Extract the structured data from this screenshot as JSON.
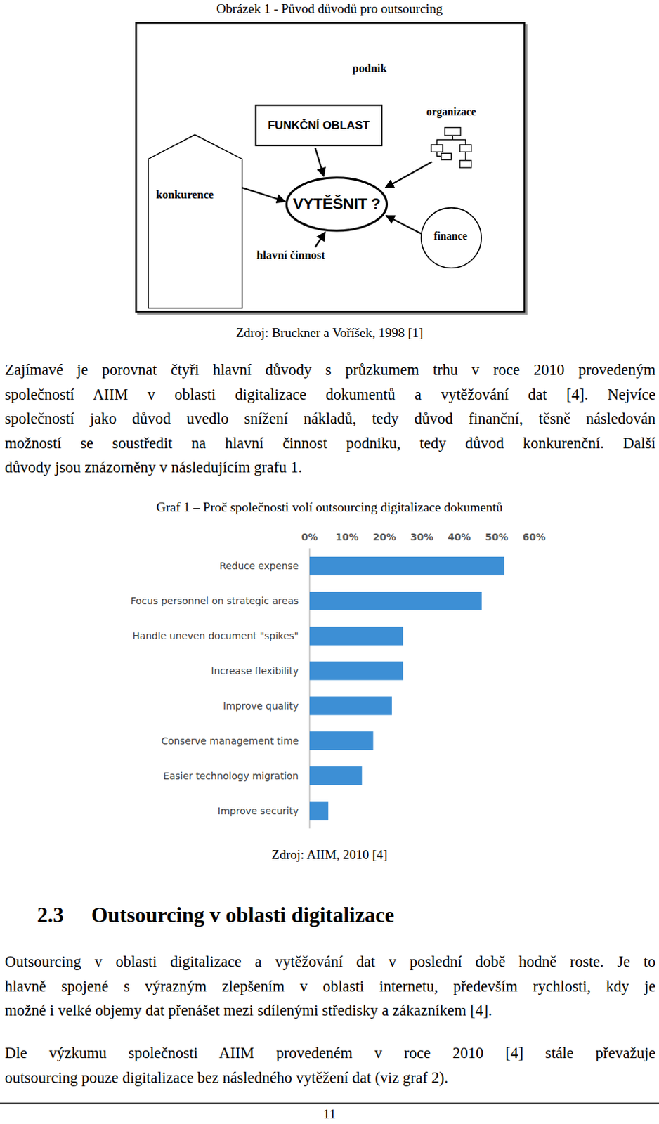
{
  "figure1": {
    "caption": "Obrázek 1 - Původ důvodů pro outsourcing",
    "nodes": [
      {
        "label": "podnik"
      },
      {
        "label": "FUNKČNÍ OBLAST"
      },
      {
        "label": "organizace"
      },
      {
        "label": "konkurence"
      },
      {
        "label": "VYTĚŠNIT ?"
      },
      {
        "label": "finance"
      },
      {
        "label": "hlavní činnost"
      }
    ],
    "source": "Zdroj: Bruckner a Voříšek, 1998 [1]"
  },
  "paragraph1": [
    "Zajímavé je porovnat čtyři hlavní důvody s průzkumem trhu v roce 2010 provedeným",
    "společností AIIM v oblasti digitalizace dokumentů a vytěžování dat [4]. Nejvíce",
    "společností jako důvod uvedlo snížení nákladů, tedy důvod finanční, těsně následován",
    "možností se soustředit na hlavní činnost podniku, tedy důvod konkurenční. Další",
    "důvody jsou znázorněny v následujícím grafu 1."
  ],
  "chart_data": {
    "type": "bar",
    "title": "Graf 1 – Proč společnosti volí outsourcing digitalizace dokumentů",
    "orientation": "horizontal",
    "categories": [
      "Reduce expense",
      "Focus personnel on strategic areas",
      "Handle uneven document \"spikes\"",
      "Increase flexibility",
      "Improve quality",
      "Conserve management time",
      "Easier technology migration",
      "Improve security"
    ],
    "values": [
      52,
      46,
      25,
      25,
      22,
      17,
      14,
      5
    ],
    "color": "#3d8fd5",
    "xlim": [
      0,
      60
    ],
    "xticks": [
      {
        "value": 0,
        "label": "0%"
      },
      {
        "value": 10,
        "label": "10%"
      },
      {
        "value": 20,
        "label": "20%"
      },
      {
        "value": 30,
        "label": "30%"
      },
      {
        "value": 40,
        "label": "40%"
      },
      {
        "value": 50,
        "label": "50%"
      },
      {
        "value": 60,
        "label": "60%"
      }
    ],
    "grid": false,
    "data_labels": false
  },
  "graph1_source": "Zdroj: AIIM, 2010 [4]",
  "section": {
    "number": "2.3",
    "title": "Outsourcing v oblasti digitalizace"
  },
  "paragraph2": [
    "Outsourcing v oblasti digitalizace a vytěžování dat v poslední době hodně roste. Je to",
    "hlavně spojené s výrazným zlepšením v oblasti internetu, především rychlosti, kdy je",
    "možné i velké objemy dat přenášet mezi sdílenými středisky a zákazníkem [4]."
  ],
  "paragraph3": [
    "Dle výzkumu společnosti AIIM provedeném v roce 2010 [4] stále převažuje",
    "outsourcing pouze digitalizace bez následného vytěžení dat (viz graf 2)."
  ],
  "page_number": "11"
}
